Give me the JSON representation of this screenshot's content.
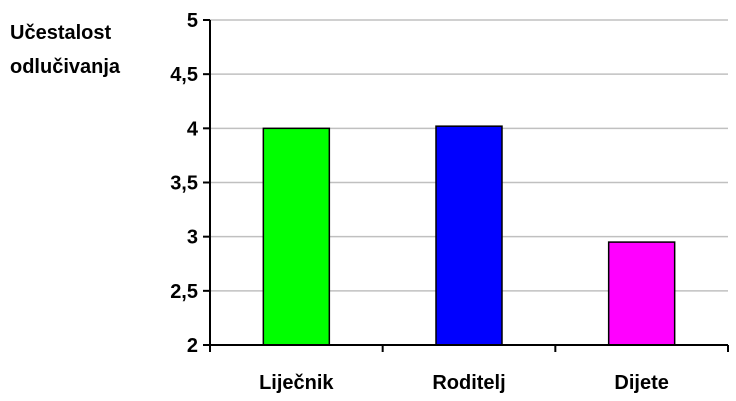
{
  "chart_data": {
    "type": "bar",
    "title": "",
    "xlabel": "",
    "ylabel_lines": [
      "Učestalost",
      "odlučivanja"
    ],
    "categories": [
      "Liječnik",
      "Roditelj",
      "Dijete"
    ],
    "values": [
      4.0,
      4.02,
      2.95
    ],
    "colors": [
      "#00ff00",
      "#0000ff",
      "#ff00ff"
    ],
    "ylim": [
      2,
      5
    ],
    "yticks": [
      2,
      2.5,
      3,
      3.5,
      4,
      4.5,
      5
    ],
    "ytick_labels": [
      "2",
      "2,5",
      "3",
      "3,5",
      "4",
      "4,5",
      "5"
    ],
    "grid": true,
    "gridline_color": "#c0c0c0",
    "bar_outline_color": "#000000",
    "axis_color": "#000000",
    "legend": "none"
  }
}
